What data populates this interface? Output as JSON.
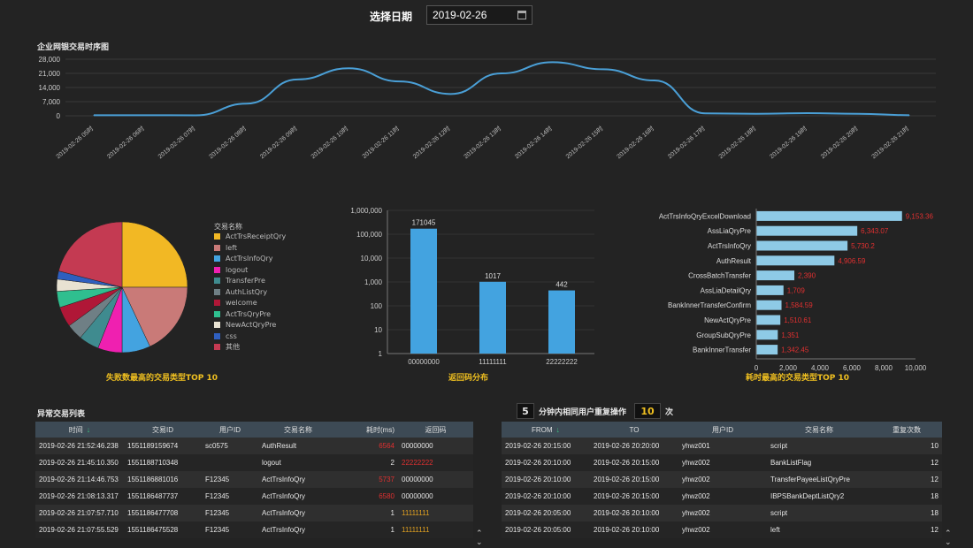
{
  "header": {
    "date_label": "选择日期",
    "date_value": "2019-02-26"
  },
  "timeline": {
    "title": "企业网银交易时序图",
    "y_ticks": [
      "28,000",
      "21,000",
      "14,000",
      "7,000",
      "0"
    ],
    "x_labels": [
      "2019-02-26 05时",
      "2019-02-26 06时",
      "2019-02-26 07时",
      "2019-02-26 08时",
      "2019-02-26 09时",
      "2019-02-26 10时",
      "2019-02-26 11时",
      "2019-02-26 12时",
      "2019-02-26 13时",
      "2019-02-26 14时",
      "2019-02-26 15时",
      "2019-02-26 16时",
      "2019-02-26 17时",
      "2019-02-26 18时",
      "2019-02-26 19时",
      "2019-02-26 20时",
      "2019-02-26 21时"
    ],
    "line_color": "#4a9fd6"
  },
  "pie": {
    "caption": "失败数最高的交易类型TOP 10",
    "legend_title": "交易名称",
    "items": [
      {
        "name": "ActTrsReceiptQry",
        "color": "#f2b824"
      },
      {
        "name": "left",
        "color": "#c97a78"
      },
      {
        "name": "ActTrsInfoQry",
        "color": "#43a3e0"
      },
      {
        "name": "logout",
        "color": "#ef20b0"
      },
      {
        "name": "TransferPre",
        "color": "#3f8b8f"
      },
      {
        "name": "AuthListQry",
        "color": "#6f7f85"
      },
      {
        "name": "welcome",
        "color": "#b01737"
      },
      {
        "name": "ActTrsQryPre",
        "color": "#2fbf8f"
      },
      {
        "name": "NewActQryPre",
        "color": "#e8e2d2"
      },
      {
        "name": "css",
        "color": "#2f5fbf"
      },
      {
        "name": "其他",
        "color": "#c43a52"
      }
    ]
  },
  "chart_data": [
    {
      "type": "line",
      "title": "企业网银交易时序图",
      "x": [
        "2019-02-26 05时",
        "2019-02-26 06时",
        "2019-02-26 07时",
        "2019-02-26 08时",
        "2019-02-26 09时",
        "2019-02-26 10时",
        "2019-02-26 11时",
        "2019-02-26 12时",
        "2019-02-26 13时",
        "2019-02-26 14时",
        "2019-02-26 15时",
        "2019-02-26 16时",
        "2019-02-26 17时",
        "2019-02-26 18时",
        "2019-02-26 19时",
        "2019-02-26 20时",
        "2019-02-26 21时"
      ],
      "values": [
        300,
        300,
        200,
        6000,
        18000,
        23500,
        17000,
        10800,
        21000,
        26500,
        23000,
        17500,
        1200,
        1000,
        1300,
        1000,
        300
      ],
      "ylim": [
        0,
        28000
      ]
    },
    {
      "type": "pie",
      "categories": [
        "ActTrsReceiptQry",
        "left",
        "ActTrsInfoQry",
        "logout",
        "TransferPre",
        "AuthListQry",
        "welcome",
        "ActTrsQryPre",
        "NewActQryPre",
        "css",
        "其他"
      ],
      "values": [
        25,
        18,
        7,
        6,
        5,
        4,
        5,
        4,
        3,
        2,
        21
      ]
    },
    {
      "type": "bar",
      "title": "返回码分布",
      "categories": [
        "00000000",
        "11111111",
        "22222222"
      ],
      "values": [
        171045,
        1017,
        442
      ],
      "data_labels": [
        "171045",
        "1017",
        "442"
      ],
      "y_ticks": [
        "1,000,000",
        "100,000",
        "10,000",
        "1,000",
        "100",
        "10",
        "1"
      ],
      "log_scale": true,
      "ylim": [
        1,
        1000000
      ],
      "color": "#43a3e0"
    },
    {
      "type": "bar",
      "orientation": "horizontal",
      "title": "耗时最高的交易类型TOP 10",
      "categories": [
        "ActTrsInfoQryExcelDownload",
        "AssLiaQryPre",
        "ActTrsInfoQry",
        "AuthResult",
        "CrossBatchTransfer",
        "AssLiaDetailQry",
        "BankInnerTransferConfirm",
        "NewActQryPre",
        "GroupSubQryPre",
        "BankInnerTransfer"
      ],
      "values": [
        9153.36,
        6343.07,
        5730.2,
        4906.59,
        2390,
        1709,
        1584.59,
        1510.61,
        1351,
        1342.45
      ],
      "data_labels": [
        "9,153.36",
        "6,343.07",
        "5,730.2",
        "4,906.59",
        "2,390",
        "1,709",
        "1,584.59",
        "1,510.61",
        "1,351",
        "1,342.45"
      ],
      "x_ticks": [
        "0",
        "2,000",
        "4,000",
        "6,000",
        "8,000",
        "10,000"
      ],
      "xlim": [
        0,
        10000
      ],
      "color": "#8ecae6"
    }
  ],
  "bar": {
    "caption": "返回码分布"
  },
  "hbar": {
    "caption": "耗时最高的交易类型TOP 10"
  },
  "anomaly": {
    "title": "异常交易列表",
    "headers": [
      "时间",
      "交易ID",
      "用户ID",
      "交易名称",
      "耗时(ms)",
      "返回码"
    ],
    "rows": [
      [
        "2019-02-26 21:52:46.238",
        "1551189159674",
        "sc0575",
        "AuthResult",
        "6564",
        "00000000"
      ],
      [
        "2019-02-26 21:45:10.350",
        "1551188710348",
        "",
        "logout",
        "2",
        "22222222"
      ],
      [
        "2019-02-26 21:14:46.753",
        "1551186881016",
        "F12345",
        "ActTrsInfoQry",
        "5737",
        "00000000"
      ],
      [
        "2019-02-26 21:08:13.317",
        "1551186487737",
        "F12345",
        "ActTrsInfoQry",
        "6580",
        "00000000"
      ],
      [
        "2019-02-26 21:07:57.710",
        "1551186477708",
        "F12345",
        "ActTrsInfoQry",
        "1",
        "11111111"
      ],
      [
        "2019-02-26 21:07:55.529",
        "1551186475528",
        "F12345",
        "ActTrsInfoQry",
        "1",
        "11111111"
      ]
    ]
  },
  "repeat": {
    "minutes": "5",
    "label": "分钟内相同用户重复操作",
    "count": "10",
    "suffix": "次",
    "headers": [
      "FROM",
      "TO",
      "用户ID",
      "交易名称",
      "重复次数"
    ],
    "rows": [
      [
        "2019-02-26 20:15:00",
        "2019-02-26 20:20:00",
        "yhwz001",
        "script",
        "10"
      ],
      [
        "2019-02-26 20:10:00",
        "2019-02-26 20:15:00",
        "yhwz002",
        "BankListFlag",
        "12"
      ],
      [
        "2019-02-26 20:10:00",
        "2019-02-26 20:15:00",
        "yhwz002",
        "TransferPayeeListQryPre",
        "12"
      ],
      [
        "2019-02-26 20:10:00",
        "2019-02-26 20:15:00",
        "yhwz002",
        "IBPSBankDeptListQry2",
        "18"
      ],
      [
        "2019-02-26 20:05:00",
        "2019-02-26 20:10:00",
        "yhwz002",
        "script",
        "18"
      ],
      [
        "2019-02-26 20:05:00",
        "2019-02-26 20:10:00",
        "yhwz002",
        "left",
        "12"
      ]
    ]
  }
}
